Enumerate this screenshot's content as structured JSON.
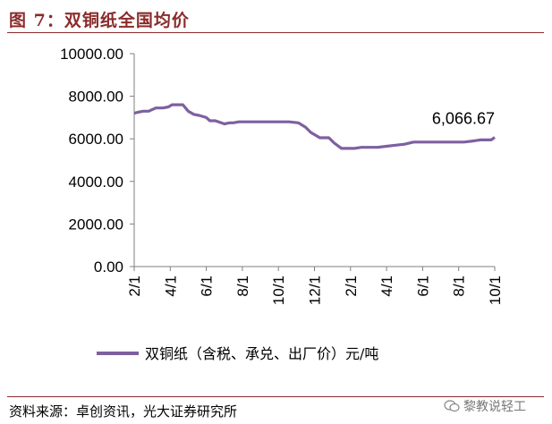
{
  "figure": {
    "title": "图 7：双铜纸全国均价",
    "source": "资料来源：卓创资讯，光大证券研究所",
    "watermark": "黎教说轻工"
  },
  "chart_data": {
    "type": "line",
    "ylim": [
      0,
      10000
    ],
    "yticks": [
      "0.00",
      "2000.00",
      "4000.00",
      "6000.00",
      "8000.00",
      "10000.00"
    ],
    "xticks": [
      "2/1",
      "4/1",
      "6/1",
      "8/1",
      "10/1",
      "12/1",
      "2/1",
      "4/1",
      "6/1",
      "8/1",
      "10/1"
    ],
    "grid": false,
    "legend_position": "bottom",
    "series": [
      {
        "name": "双铜纸（含税、承兑、出厂价）元/吨",
        "color": "#7e60a0",
        "x": [
          0,
          0.2,
          0.5,
          0.8,
          1.2,
          1.6,
          1.9,
          2.1,
          2.4,
          2.7,
          3.0,
          3.3,
          3.6,
          4.0,
          4.2,
          4.5,
          5.0,
          5.3,
          5.5,
          5.8,
          6.2,
          6.6,
          7.0,
          7.6,
          8.2,
          8.6,
          9.1,
          9.5,
          9.8,
          10.3,
          10.6,
          10.8,
          11.1,
          11.5,
          11.7,
          12.2,
          12.6,
          13.0,
          13.5,
          14.0,
          14.5,
          15.0,
          15.5,
          16.0,
          16.5,
          17.0,
          17.5,
          17.8,
          18.3,
          18.8,
          19.2,
          19.8,
          20.0
        ],
        "values": [
          7200,
          7250,
          7300,
          7300,
          7450,
          7450,
          7500,
          7600,
          7600,
          7600,
          7300,
          7150,
          7100,
          7000,
          6850,
          6850,
          6700,
          6750,
          6750,
          6800,
          6800,
          6800,
          6800,
          6800,
          6800,
          6800,
          6750,
          6550,
          6300,
          6050,
          6050,
          6050,
          5800,
          5550,
          5550,
          5550,
          5600,
          5600,
          5600,
          5650,
          5700,
          5750,
          5850,
          5850,
          5850,
          5850,
          5850,
          5850,
          5850,
          5900,
          5950,
          5950,
          6066.67
        ]
      }
    ],
    "annotations": [
      {
        "text": "6,066.67"
      }
    ]
  }
}
